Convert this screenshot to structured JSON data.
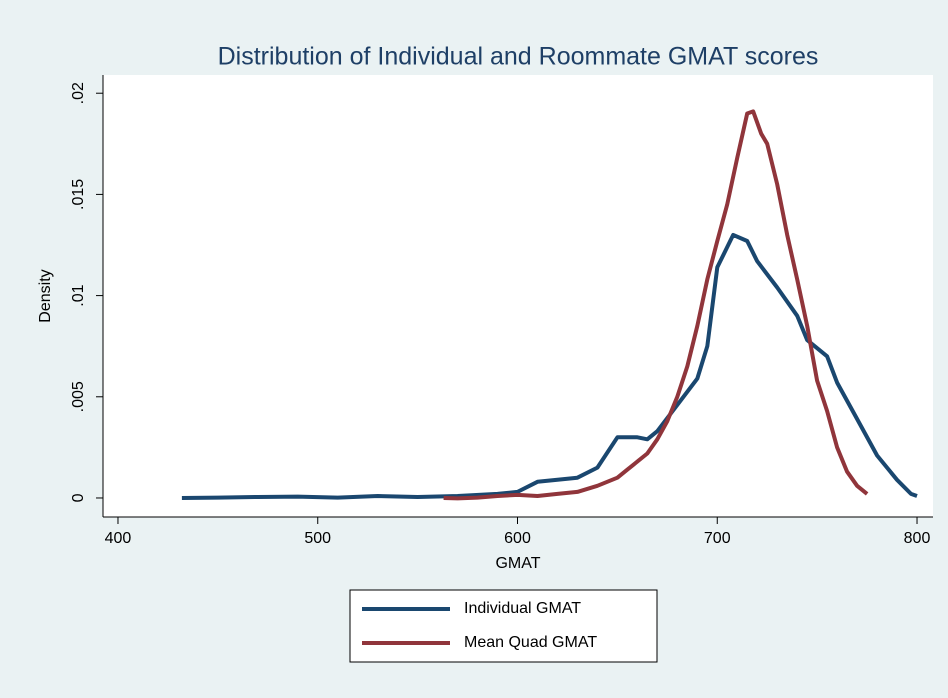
{
  "chart_data": {
    "type": "line",
    "title": "Distribution of Individual and Roommate GMAT scores",
    "xlabel": "GMAT",
    "ylabel": "Density",
    "xlim": [
      392.5,
      808
    ],
    "xticks": [
      400,
      500,
      600,
      700,
      800
    ],
    "ylim": [
      -0.00094,
      0.0209
    ],
    "yticks": [
      0,
      {
        "value": 0.005,
        "label": ".005"
      },
      {
        "value": 0.01,
        "label": ".01"
      },
      {
        "value": 0.015,
        "label": ".015"
      },
      {
        "value": 0.02,
        "label": ".02"
      }
    ],
    "grid": false,
    "legend": "bottom",
    "series": [
      {
        "name": "Individual GMAT",
        "color": "#1a476f",
        "x": [
          432,
          450,
          470,
          490,
          510,
          530,
          550,
          570,
          590,
          600,
          610,
          620,
          630,
          640,
          650,
          660,
          665,
          670,
          680,
          690,
          695,
          700,
          708,
          715,
          720,
          730,
          740,
          745,
          755,
          760,
          770,
          780,
          790,
          797,
          800
        ],
        "values": [
          0.0,
          2e-05,
          5e-05,
          7e-05,
          2e-05,
          0.0001,
          5e-05,
          0.0001,
          0.0002,
          0.0003,
          0.0008,
          0.0009,
          0.001,
          0.0015,
          0.003,
          0.003,
          0.0029,
          0.0033,
          0.0046,
          0.0059,
          0.0075,
          0.0114,
          0.013,
          0.0127,
          0.0117,
          0.0104,
          0.009,
          0.0078,
          0.007,
          0.0057,
          0.0039,
          0.0021,
          0.0009,
          0.0002,
          0.0001
        ]
      },
      {
        "name": "Mean Quad GMAT",
        "color": "#90353b",
        "x": [
          563,
          570,
          580,
          590,
          600,
          610,
          620,
          630,
          640,
          650,
          655,
          665,
          670,
          675,
          680,
          685,
          690,
          695,
          700,
          705,
          710,
          715,
          718,
          722,
          725,
          730,
          735,
          740,
          745,
          750,
          755,
          760,
          765,
          770,
          775
        ],
        "values": [
          0.0,
          -2e-05,
          2e-05,
          0.0001,
          0.00015,
          0.0001,
          0.0002,
          0.0003,
          0.0006,
          0.001,
          0.0014,
          0.0022,
          0.0029,
          0.0038,
          0.005,
          0.0065,
          0.0085,
          0.0108,
          0.0127,
          0.0145,
          0.0168,
          0.019,
          0.0191,
          0.018,
          0.0175,
          0.0155,
          0.013,
          0.0108,
          0.0085,
          0.0058,
          0.0043,
          0.0025,
          0.0013,
          0.0006,
          0.0002
        ]
      }
    ]
  }
}
